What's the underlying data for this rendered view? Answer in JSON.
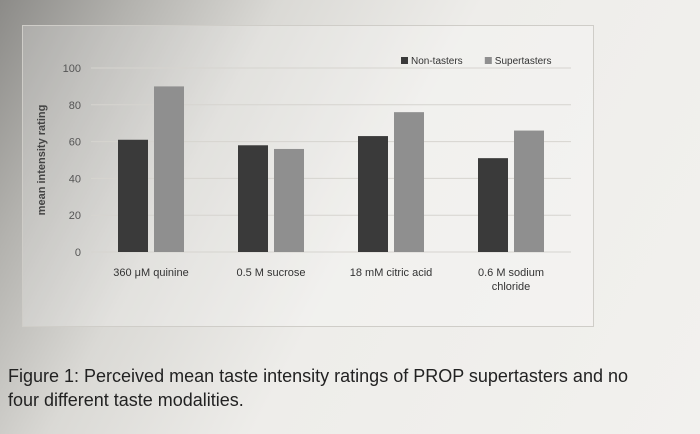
{
  "chart_data": {
    "type": "bar",
    "ylabel": "mean intensity rating",
    "xlabel": "",
    "ylim": [
      0,
      100
    ],
    "yticks": [
      0,
      20,
      40,
      60,
      80,
      100
    ],
    "grid": true,
    "legend": "top-right",
    "categories": [
      [
        "360 μM quinine"
      ],
      [
        "0.5 M sucrose"
      ],
      [
        "18 mM citric acid"
      ],
      [
        "0.6 M sodium",
        "chloride"
      ]
    ],
    "series": [
      {
        "name": "Non-tasters",
        "color": "#3a3a3a",
        "values": [
          61,
          58,
          63,
          51
        ]
      },
      {
        "name": "Supertasters",
        "color": "#8f8f8f",
        "values": [
          90,
          56,
          76,
          66
        ]
      }
    ]
  },
  "caption": {
    "line1": "Figure 1: Perceived mean taste intensity ratings of PROP supertasters and no",
    "line2": "four different taste modalities."
  }
}
